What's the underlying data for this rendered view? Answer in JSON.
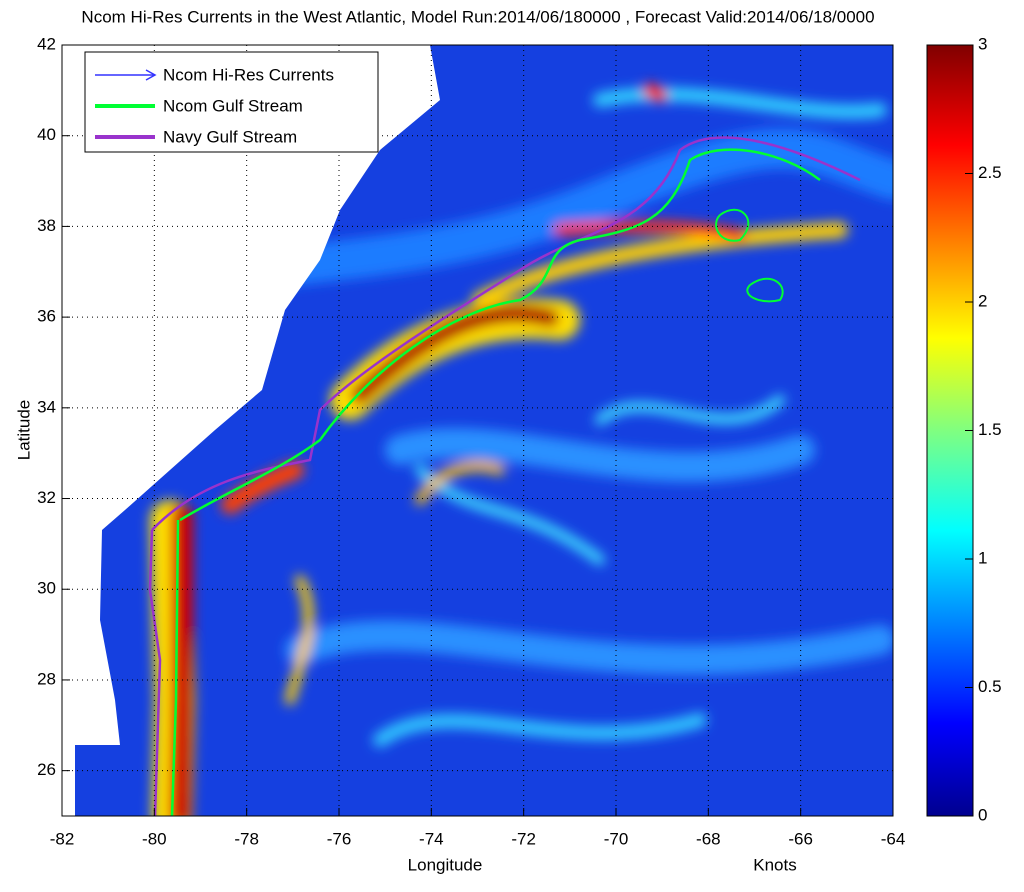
{
  "map": {
    "title": "Ncom Hi-Res Currents in the West Atlantic, Model Run:2014/06/180000 , Forecast Valid:2014/06/18/0000",
    "xlabel": "Longitude",
    "ylabel": "Latitude",
    "colorbar_label": "Knots",
    "xlim": [
      -82,
      -64
    ],
    "ylim": [
      25,
      42
    ],
    "xticks": [
      -82,
      -80,
      -78,
      -76,
      -74,
      -72,
      -70,
      -68,
      -66,
      -64
    ],
    "yticks": [
      26,
      28,
      30,
      32,
      34,
      36,
      38,
      40,
      42
    ],
    "colorbar_lim": [
      0,
      3
    ],
    "colorbar_ticks": [
      0,
      0.5,
      1,
      1.5,
      2,
      2.5,
      3
    ],
    "legend": [
      {
        "name": "Ncom Hi-Res Currents",
        "color": "#3333ff"
      },
      {
        "name": "Ncom Gulf Stream",
        "color": "#00ff33"
      },
      {
        "name": "Navy Gulf Stream",
        "color": "#9933cc"
      }
    ]
  }
}
